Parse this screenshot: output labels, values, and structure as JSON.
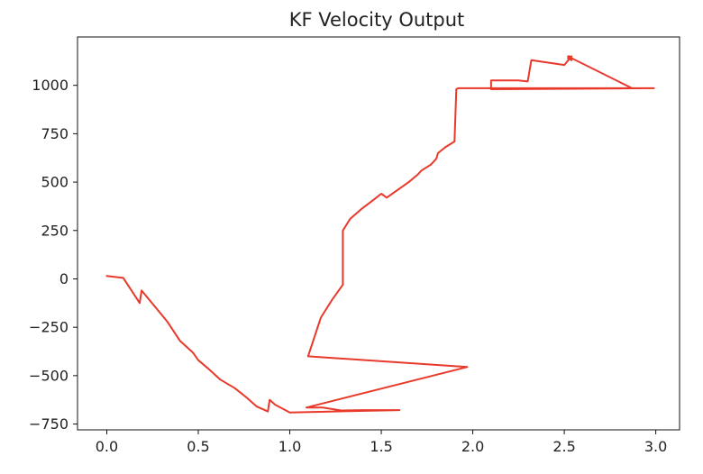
{
  "chart_data": {
    "type": "line",
    "title": "KF Velocity Output",
    "xlabel": "",
    "ylabel": "",
    "xlim": [
      -0.16,
      3.13
    ],
    "ylim": [
      -780,
      1250
    ],
    "xticks": [
      0.0,
      0.5,
      1.0,
      1.5,
      2.0,
      2.5,
      3.0
    ],
    "xtick_labels": [
      "0.0",
      "0.5",
      "1.0",
      "1.5",
      "2.0",
      "2.5",
      "3.0"
    ],
    "yticks": [
      -750,
      -500,
      -250,
      0,
      250,
      500,
      750,
      1000
    ],
    "ytick_labels": [
      "−750",
      "−500",
      "−250",
      "0",
      "250",
      "500",
      "750",
      "1000"
    ],
    "grid": false,
    "legend": "none",
    "series": [
      {
        "color": "#e8392b",
        "x": [
          0.0,
          0.09,
          0.18,
          0.19,
          0.26,
          0.33,
          0.4,
          0.47,
          0.5,
          0.55,
          0.62,
          0.7,
          0.76,
          0.82,
          0.88,
          0.89,
          0.92,
          1.0,
          1.6,
          1.4,
          1.28,
          1.18,
          1.09,
          1.97,
          1.1,
          1.17,
          1.23,
          1.29,
          1.29,
          1.33,
          1.39,
          1.46,
          1.5,
          1.53,
          1.59,
          1.65,
          1.7,
          1.72,
          1.77,
          1.8,
          1.81,
          1.85,
          1.9,
          1.91,
          1.92,
          1.95,
          2.1,
          2.1,
          2.25,
          2.3,
          2.32,
          2.5,
          2.54,
          2.52,
          2.54,
          2.53,
          2.52,
          2.87,
          2.99,
          2.1,
          2.1,
          1.99,
          2.99
        ],
        "y": [
          15,
          5,
          -125,
          -60,
          -140,
          -220,
          -320,
          -380,
          -420,
          -460,
          -520,
          -565,
          -610,
          -660,
          -685,
          -625,
          -650,
          -690,
          -678,
          -678,
          -680,
          -665,
          -665,
          -455,
          -400,
          -200,
          -110,
          -30,
          250,
          310,
          360,
          410,
          440,
          420,
          460,
          500,
          540,
          560,
          590,
          620,
          650,
          680,
          710,
          980,
          985,
          985,
          985,
          1025,
          1025,
          1020,
          1130,
          1105,
          1150,
          1140,
          1130,
          1150,
          1150,
          985,
          985,
          980,
          985,
          985,
          985
        ]
      }
    ]
  }
}
